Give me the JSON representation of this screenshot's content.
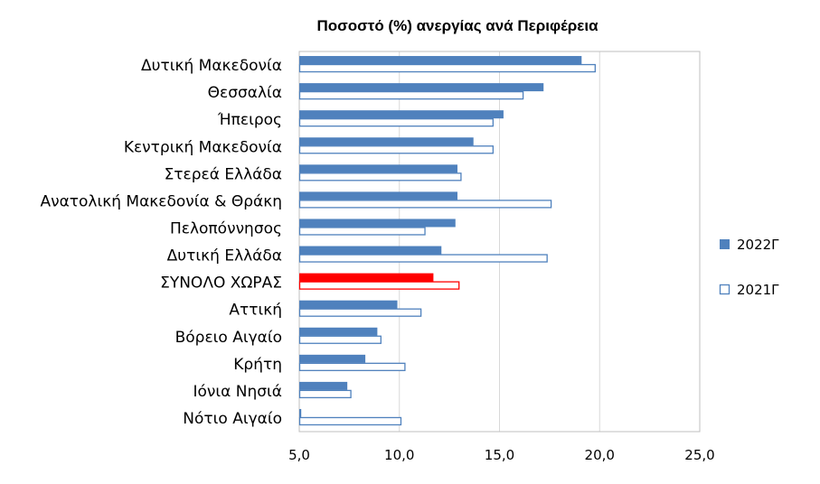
{
  "chart_data": {
    "type": "bar",
    "orientation": "horizontal",
    "title": "Ποσοστό (%) ανεργίας ανά Περιφέρεια",
    "categories": [
      "Δυτική Μακεδονία",
      "Θεσσαλία",
      "Ήπειρος",
      "Κεντρική Μακεδονία",
      "Στερεά Ελλάδα",
      "Ανατολική Μακεδονία & Θράκη",
      "Πελοπόννησος",
      "Δυτική Ελλάδα",
      "ΣΥΝΟΛΟ ΧΩΡΑΣ",
      "Αττική",
      "Βόρειο Αιγαίο",
      "Κρήτη",
      "Ιόνια Νησιά",
      "Νότιο Αιγαίο"
    ],
    "highlight_category": "ΣΥΝΟΛΟ ΧΩΡΑΣ",
    "highlight_color": "#ff0000",
    "series": [
      {
        "name": "2022Γ",
        "style": "filled",
        "color": "#4f81bd",
        "values": [
          19.1,
          17.2,
          15.2,
          13.7,
          12.9,
          12.9,
          12.8,
          12.1,
          11.7,
          9.9,
          8.9,
          8.3,
          7.4,
          5.1
        ]
      },
      {
        "name": "2021Γ",
        "style": "outline",
        "color": "#4f81bd",
        "values": [
          19.8,
          16.2,
          14.7,
          14.7,
          13.1,
          17.6,
          11.3,
          17.4,
          13.0,
          11.1,
          9.1,
          10.3,
          7.6,
          10.1
        ]
      }
    ],
    "xlim": [
      5,
      25
    ],
    "xticks": [
      "5,0",
      "10,0",
      "15,0",
      "20,0",
      "25,0"
    ],
    "xtick_values": [
      5,
      10,
      15,
      20,
      25
    ],
    "grid": true,
    "legend_position": "right"
  }
}
